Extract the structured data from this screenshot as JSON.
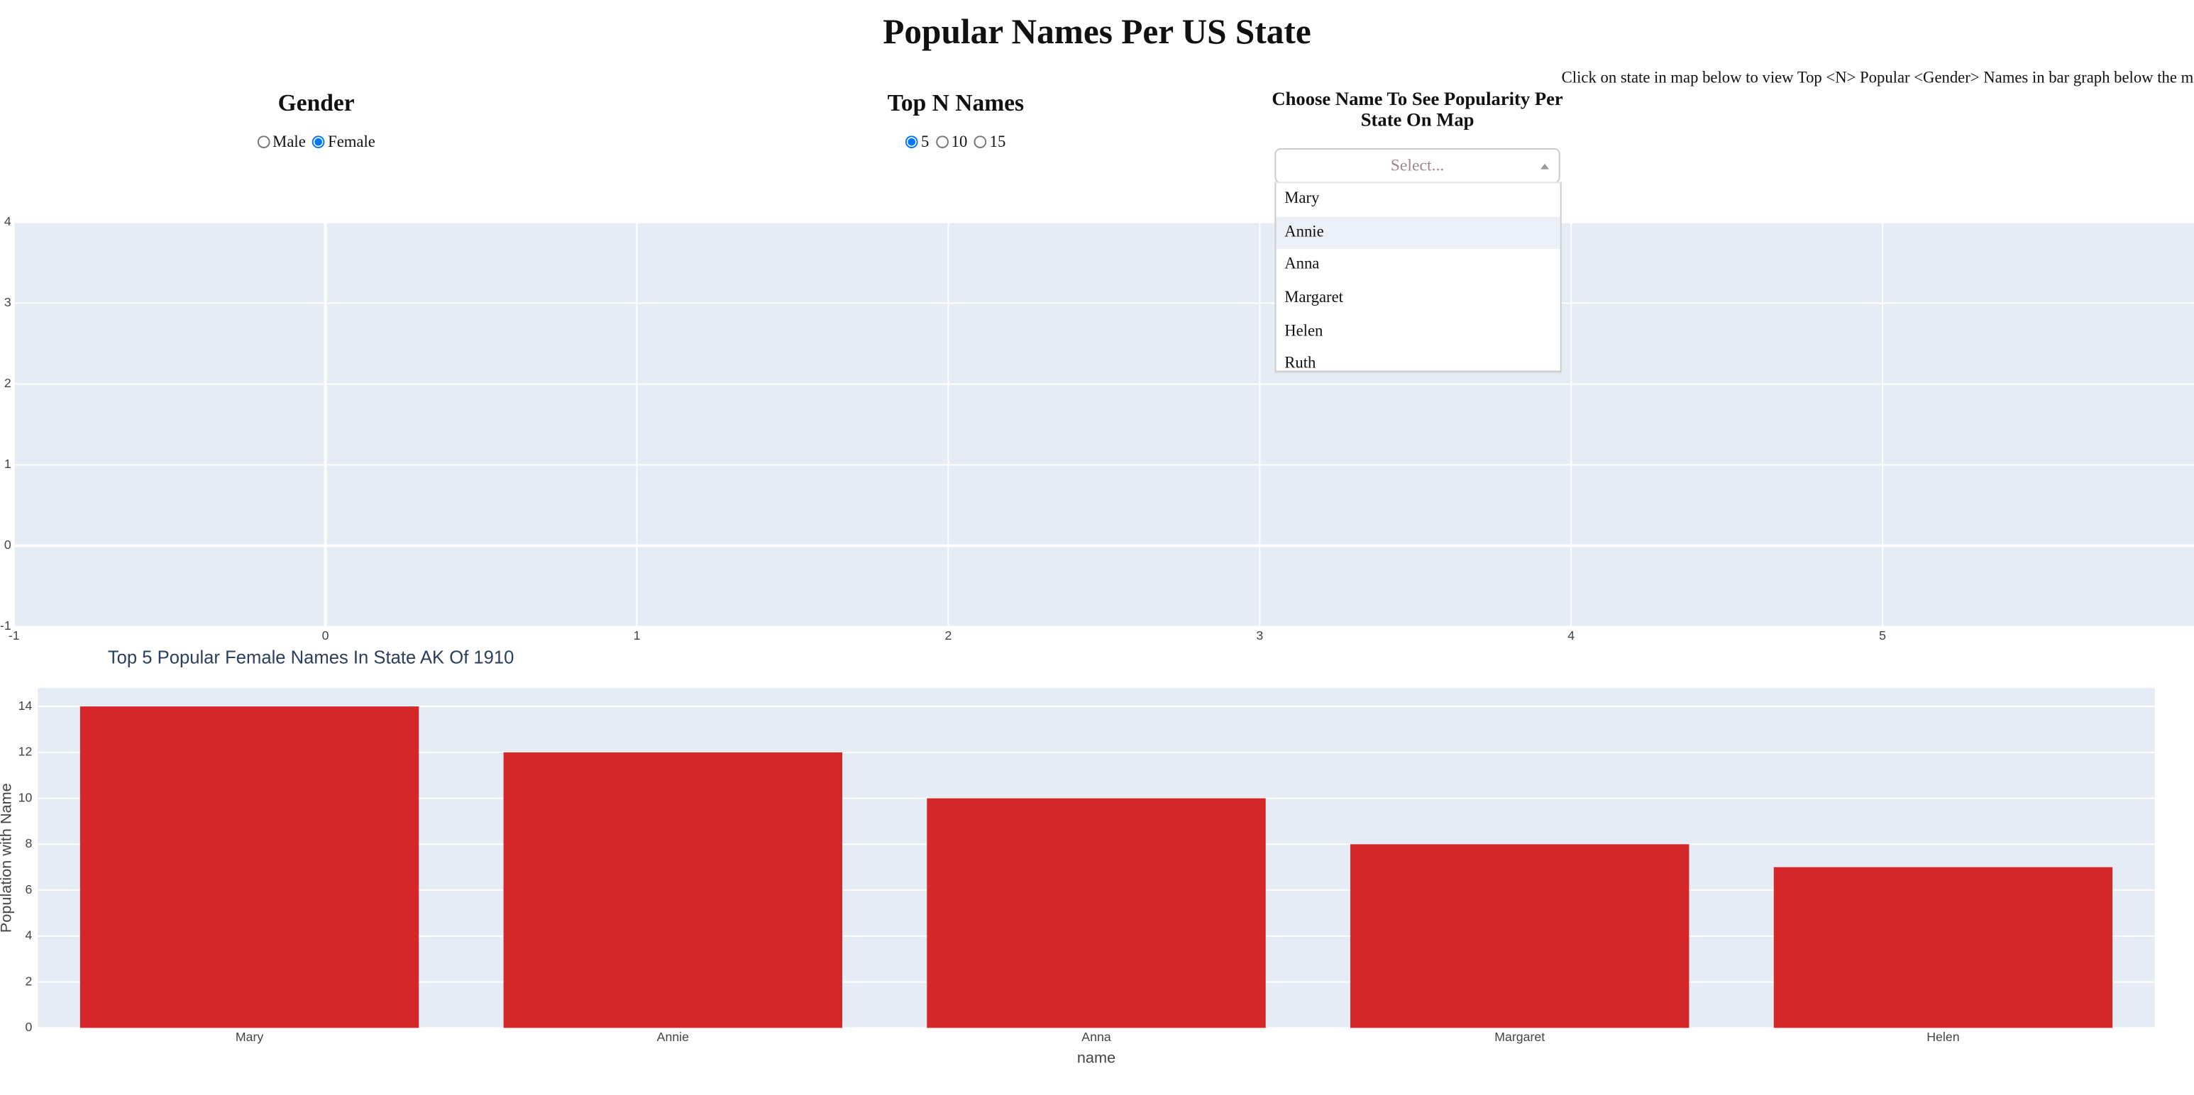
{
  "header": {
    "title": "Popular Names Per US State"
  },
  "instructions": "Click on state in map below to view Top <N> Popular <Gender> Names in bar graph below the map.",
  "controls": {
    "gender": {
      "label": "Gender",
      "options": [
        "Male",
        "Female"
      ],
      "selected": "Female"
    },
    "top_n": {
      "label": "Top N Names",
      "options": [
        "5",
        "10",
        "15"
      ],
      "selected": "5"
    },
    "name_picker": {
      "label": "Choose Name To See Popularity Per State On Map",
      "placeholder": "Select...",
      "options": [
        "Mary",
        "Annie",
        "Anna",
        "Margaret",
        "Helen",
        "Ruth"
      ],
      "highlighted": "Annie"
    }
  },
  "chart_data": [
    {
      "type": "scatter",
      "xlim": [
        -1,
        6
      ],
      "ylim": [
        -1,
        4
      ],
      "xticks": [
        -1,
        0,
        1,
        2,
        3,
        4,
        5
      ],
      "yticks": [
        -1,
        0,
        1,
        2,
        3,
        4
      ],
      "grid": true
    },
    {
      "type": "bar",
      "title": "Top 5 Popular Female Names In State AK Of 1910",
      "x_label": "name",
      "y_label": "Population with Name",
      "categories": [
        "Mary",
        "Annie",
        "Anna",
        "Margaret",
        "Helen"
      ],
      "values": [
        14,
        12,
        10,
        8,
        7
      ],
      "color": "#d62728",
      "ylim": [
        0,
        14.8
      ],
      "yticks": [
        0,
        2,
        4,
        6,
        8,
        10,
        12,
        14
      ],
      "grid": true
    }
  ]
}
